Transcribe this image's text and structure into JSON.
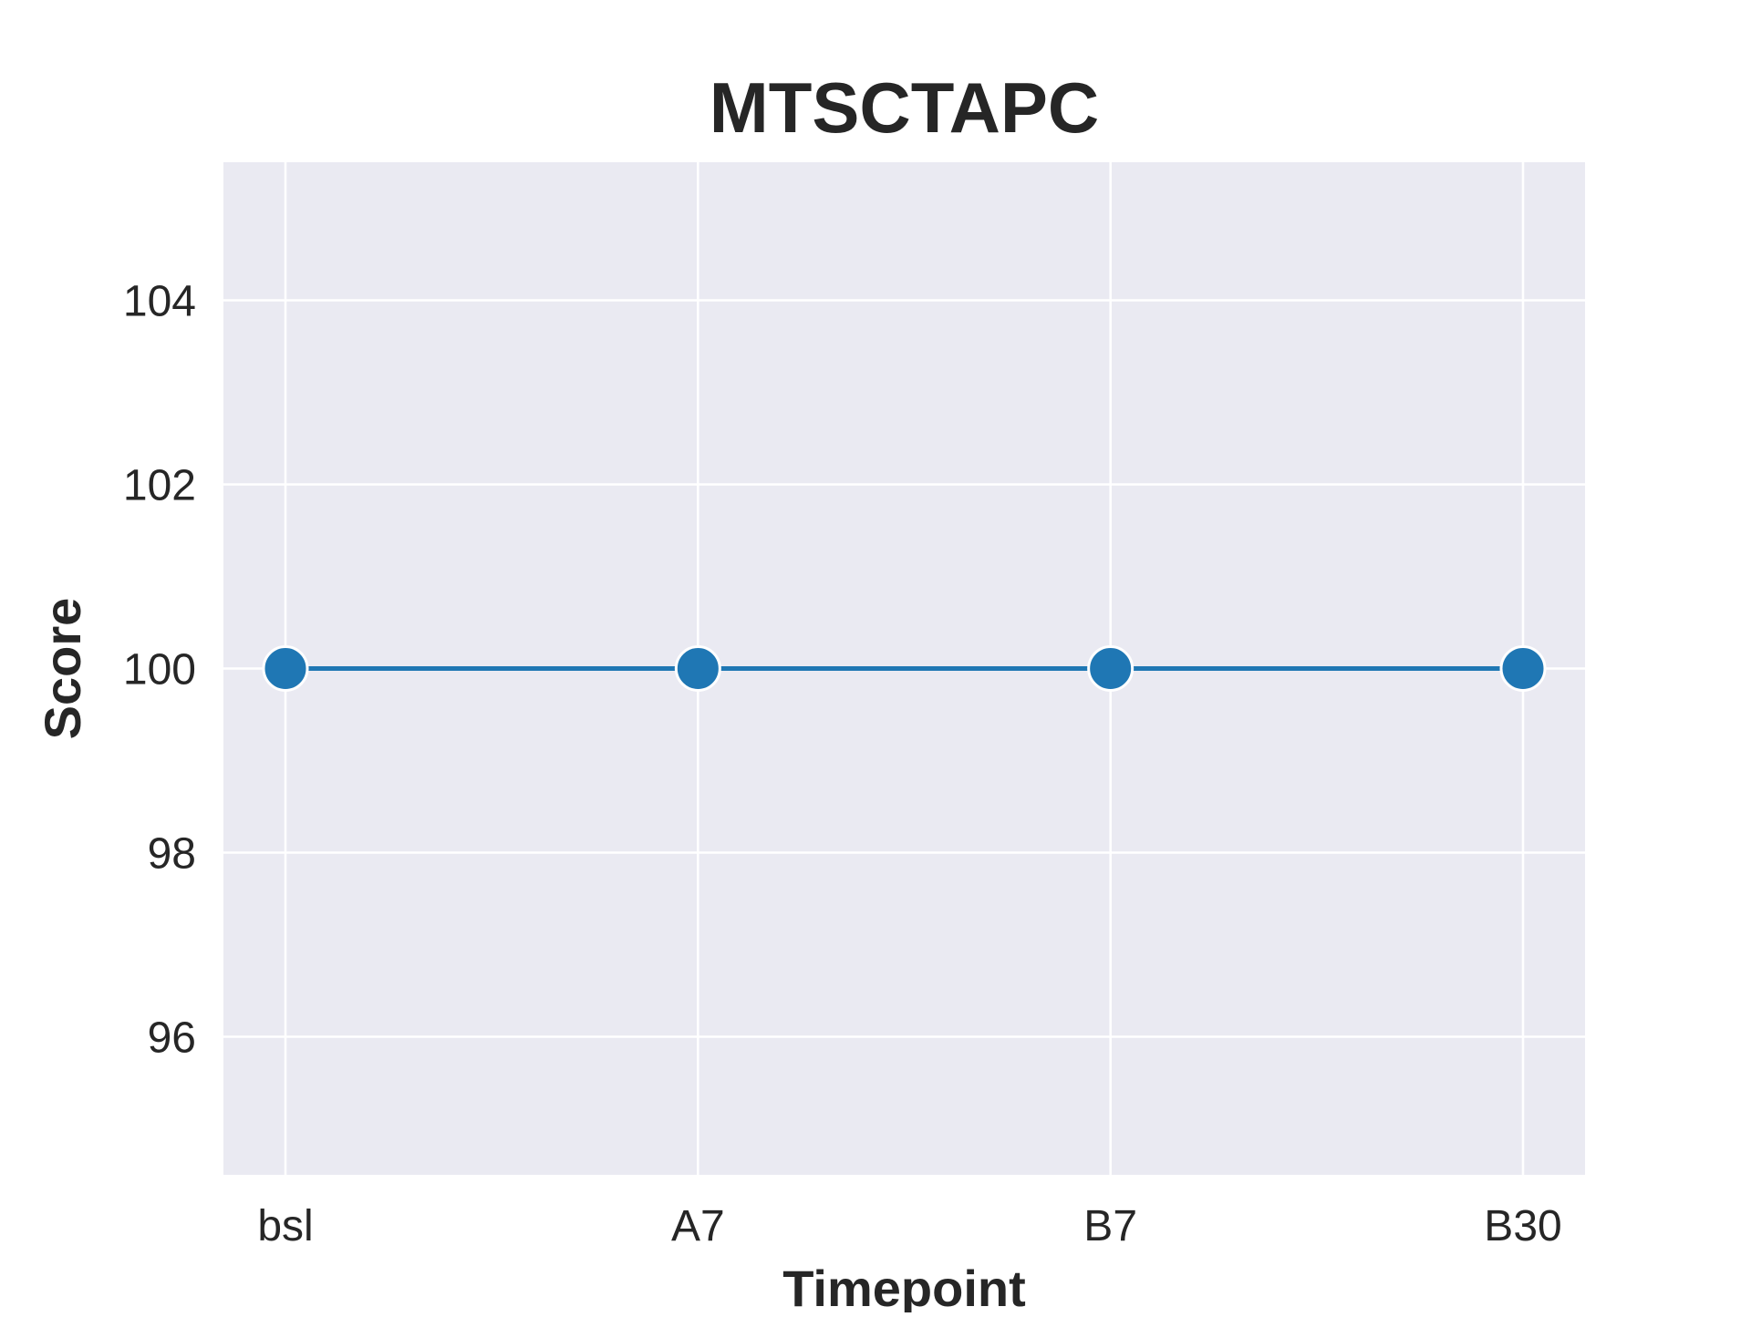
{
  "chart_data": {
    "type": "line",
    "title": "MTSCTAPC",
    "xlabel": "Timepoint",
    "ylabel": "Score",
    "categories": [
      "bsl",
      "A7",
      "B7",
      "B30"
    ],
    "series": [
      {
        "values": [
          100,
          100,
          100,
          100
        ]
      }
    ],
    "ylim": [
      94.5,
      105.5
    ],
    "yticks": [
      96,
      98,
      100,
      102,
      104
    ],
    "ytick_labels": [
      "96",
      "98",
      "100",
      "102",
      "104"
    ],
    "grid": true,
    "legend": "none",
    "colors": {
      "line": "#1f77b4",
      "marker": "#1f77b4",
      "marker_edge": "#ffffff",
      "plot_background": "#eaeaf2",
      "grid": "#ffffff"
    }
  }
}
